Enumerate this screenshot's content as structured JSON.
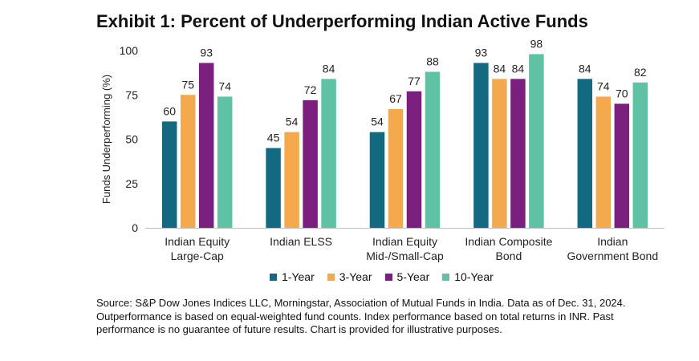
{
  "chart_data": {
    "type": "bar",
    "title": "Exhibit 1: Percent of Underperforming Indian Active Funds",
    "ylabel": "Funds Underperforming (%)",
    "xlabel": "",
    "ylim": [
      0,
      100
    ],
    "yticks": [
      0,
      25,
      50,
      75,
      100
    ],
    "categories": [
      [
        "Indian Equity",
        "Large-Cap"
      ],
      [
        "Indian ELSS"
      ],
      [
        "Indian Equity",
        "Mid-/Small-Cap"
      ],
      [
        "Indian Composite",
        "Bond"
      ],
      [
        "Indian",
        "Government Bond"
      ]
    ],
    "series": [
      {
        "name": "1-Year",
        "color": "#136a80",
        "values": [
          60,
          45,
          54,
          93,
          84
        ]
      },
      {
        "name": "3-Year",
        "color": "#f5a94e",
        "values": [
          75,
          54,
          67,
          84,
          74
        ]
      },
      {
        "name": "5-Year",
        "color": "#7c2080",
        "values": [
          93,
          72,
          77,
          84,
          70
        ]
      },
      {
        "name": "10-Year",
        "color": "#5fc2a4",
        "values": [
          74,
          84,
          88,
          98,
          82
        ]
      }
    ],
    "legend_position": "bottom",
    "grid": false
  },
  "source_note": "Source: S&P Dow Jones Indices LLC, Morningstar, Association of Mutual Funds in India.  Data as of Dec. 31, 2024.  Outperformance is based on equal-weighted fund counts.  Index performance based on total returns in INR.  Past performance is no guarantee of future results.  Chart is provided for illustrative purposes."
}
